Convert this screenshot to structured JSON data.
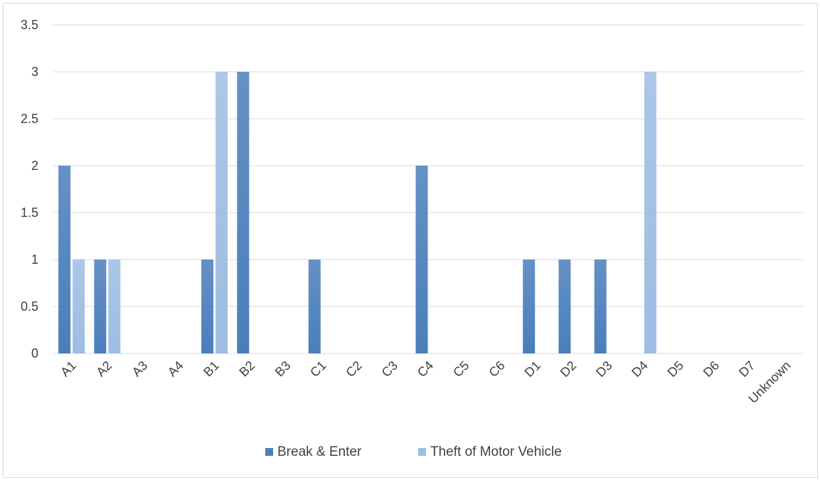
{
  "chart_data": {
    "type": "bar",
    "title": "",
    "xlabel": "",
    "ylabel": "",
    "ylim": [
      0,
      3.5
    ],
    "yticks": [
      0,
      0.5,
      1,
      1.5,
      2,
      2.5,
      3,
      3.5
    ],
    "ytick_labels": [
      "0",
      "0.5",
      "1",
      "1.5",
      "2",
      "2.5",
      "3",
      "3.5"
    ],
    "grid": true,
    "legend_position": "bottom",
    "categories": [
      "A1",
      "A2",
      "A3",
      "A4",
      "B1",
      "B2",
      "B3",
      "C1",
      "C2",
      "C3",
      "C4",
      "C5",
      "C6",
      "D1",
      "D2",
      "D3",
      "D4",
      "D5",
      "D6",
      "D7",
      "Unknown"
    ],
    "series": [
      {
        "name": "Break & Enter",
        "color": "#4a7ebb",
        "values": [
          2,
          1,
          0,
          0,
          1,
          3,
          0,
          1,
          0,
          0,
          2,
          0,
          0,
          1,
          1,
          1,
          0,
          0,
          0,
          0,
          0
        ]
      },
      {
        "name": "Theft of Motor Vehicle",
        "color": "#9dbde3",
        "values": [
          1,
          1,
          0,
          0,
          3,
          0,
          0,
          0,
          0,
          0,
          0,
          0,
          0,
          0,
          0,
          0,
          3,
          0,
          0,
          0,
          0
        ]
      }
    ]
  }
}
